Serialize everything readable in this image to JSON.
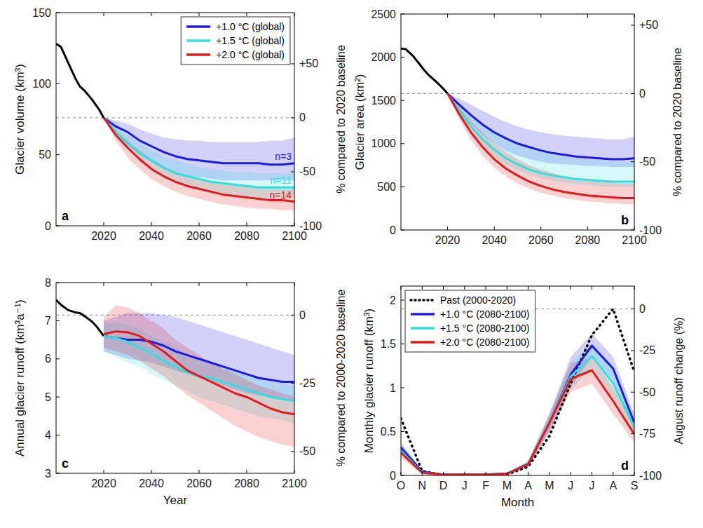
{
  "chart_data": [
    {
      "type": "line",
      "label": "a",
      "ylabel": "Glacier volume (km³)",
      "y2label": "% compared to 2020 baseline",
      "xlim": [
        2000,
        2100
      ],
      "xticks": [
        2020,
        2040,
        2060,
        2080,
        2100
      ],
      "ylim": [
        0,
        150
      ],
      "yticks": [
        0,
        50,
        100,
        150
      ],
      "y2lim": [
        -100,
        97.4
      ],
      "y2ticks": [
        -100,
        -50,
        0,
        {
          "value": 50,
          "label": "+50"
        }
      ],
      "reference_line": {
        "axis": "y2",
        "value": 0,
        "line_style": "dashed"
      },
      "legend": "upper right",
      "x": [
        2020,
        2025,
        2030,
        2035,
        2040,
        2045,
        2050,
        2055,
        2060,
        2065,
        2070,
        2075,
        2080,
        2085,
        2090,
        2095,
        2100
      ],
      "series": [
        {
          "color": "#000000",
          "x": [
            2000,
            2002,
            2005,
            2008,
            2010,
            2012,
            2015,
            2018,
            2020
          ],
          "values": [
            128,
            126,
            115,
            104,
            98,
            95,
            89,
            82,
            76
          ]
        },
        {
          "name": "+1.0 °C (global)",
          "color": "#1a1ae6",
          "label": "n=3",
          "values": [
            76,
            70,
            66,
            60,
            56,
            52,
            49,
            47,
            46,
            45,
            44,
            44,
            44,
            44,
            43,
            43,
            44
          ],
          "upper": [
            76,
            74,
            72,
            68,
            65,
            62,
            61,
            60,
            60,
            59,
            59,
            59,
            59,
            59,
            60,
            60,
            62
          ],
          "lower": [
            76,
            66,
            58,
            51,
            45,
            40,
            37,
            35,
            34,
            33,
            32,
            32,
            32,
            32,
            32,
            32,
            32
          ]
        },
        {
          "name": "+1.5 °C (global)",
          "color": "#33dede",
          "label": "n=11",
          "values": [
            76,
            66,
            58,
            51,
            46,
            41,
            37,
            35,
            33,
            31,
            30,
            29,
            28,
            27,
            27,
            27,
            27
          ],
          "upper": [
            76,
            70,
            64,
            58,
            53,
            49,
            46,
            44,
            42,
            40,
            39,
            38,
            38,
            37,
            37,
            37,
            37
          ],
          "lower": [
            76,
            62,
            53,
            45,
            39,
            34,
            30,
            28,
            26,
            24,
            23,
            22,
            21,
            20,
            20,
            20,
            20
          ]
        },
        {
          "name": "+2.0 °C (global)",
          "color": "#e01b1b",
          "label": "n=14",
          "values": [
            76,
            64,
            55,
            47,
            40,
            35,
            31,
            28,
            26,
            24,
            22,
            21,
            20,
            19,
            18,
            18,
            17
          ],
          "upper": [
            76,
            68,
            60,
            53,
            47,
            42,
            38,
            35,
            33,
            31,
            30,
            29,
            28,
            27,
            27,
            26,
            26
          ],
          "lower": [
            76,
            60,
            48,
            40,
            33,
            28,
            24,
            21,
            19,
            17,
            15,
            14,
            13,
            12,
            12,
            11,
            11
          ]
        }
      ]
    },
    {
      "type": "line",
      "label": "b",
      "ylabel": "Glacier area (km²)",
      "y2label": "% compared to 2020 baseline",
      "xlim": [
        2000,
        2100
      ],
      "xticks": [
        2020,
        2040,
        2060,
        2080,
        2100
      ],
      "ylim": [
        0,
        2500
      ],
      "yticks": [
        0,
        500,
        1000,
        1500,
        2000,
        2500
      ],
      "y2lim": [
        -100,
        58.2
      ],
      "y2ticks": [
        -100,
        -50,
        0,
        {
          "value": 50,
          "label": "+50"
        }
      ],
      "reference_line": {
        "axis": "y2",
        "value": 0,
        "line_style": "dashed"
      },
      "x": [
        2020,
        2025,
        2030,
        2035,
        2040,
        2045,
        2050,
        2055,
        2060,
        2065,
        2070,
        2075,
        2080,
        2085,
        2090,
        2095,
        2100
      ],
      "series": [
        {
          "color": "#000000",
          "x": [
            2000,
            2002,
            2005,
            2008,
            2010,
            2012,
            2015,
            2018,
            2020
          ],
          "values": [
            2100,
            2095,
            2020,
            1920,
            1850,
            1790,
            1720,
            1640,
            1580
          ]
        },
        {
          "color": "#1a1ae6",
          "values": [
            1580,
            1450,
            1330,
            1220,
            1130,
            1060,
            1000,
            960,
            920,
            890,
            870,
            850,
            840,
            830,
            820,
            820,
            830
          ],
          "upper": [
            1580,
            1520,
            1450,
            1380,
            1310,
            1250,
            1200,
            1160,
            1130,
            1110,
            1090,
            1080,
            1070,
            1060,
            1050,
            1050,
            1080
          ],
          "lower": [
            1580,
            1400,
            1230,
            1100,
            1000,
            920,
            860,
            820,
            790,
            770,
            760,
            750,
            740,
            740,
            730,
            730,
            730
          ]
        },
        {
          "color": "#33dede",
          "values": [
            1580,
            1380,
            1200,
            1050,
            930,
            830,
            760,
            700,
            660,
            630,
            610,
            590,
            580,
            570,
            560,
            560,
            560
          ],
          "upper": [
            1580,
            1460,
            1340,
            1230,
            1140,
            1060,
            1000,
            950,
            910,
            880,
            850,
            830,
            820,
            810,
            800,
            790,
            790
          ],
          "lower": [
            1580,
            1330,
            1130,
            970,
            850,
            760,
            690,
            640,
            600,
            570,
            550,
            530,
            520,
            510,
            500,
            500,
            500
          ]
        },
        {
          "color": "#e01b1b",
          "values": [
            1580,
            1340,
            1130,
            960,
            820,
            710,
            630,
            560,
            510,
            470,
            440,
            420,
            400,
            390,
            380,
            370,
            370
          ],
          "upper": [
            1580,
            1420,
            1260,
            1120,
            1000,
            900,
            820,
            750,
            700,
            660,
            620,
            600,
            580,
            560,
            550,
            540,
            540
          ],
          "lower": [
            1580,
            1280,
            1040,
            860,
            720,
            620,
            540,
            480,
            430,
            400,
            370,
            350,
            330,
            320,
            310,
            300,
            300
          ]
        }
      ]
    },
    {
      "type": "line",
      "label": "c",
      "xlabel": "Year",
      "ylabel": "Annual glacier runoff (km³a⁻¹)",
      "y2label": "% compared to 2000-2020 baseline",
      "xlim": [
        2000,
        2100
      ],
      "xticks": [
        2020,
        2040,
        2060,
        2080,
        2100
      ],
      "ylim": [
        3,
        8
      ],
      "yticks": [
        3,
        4,
        5,
        6,
        7,
        8
      ],
      "y2lim": [
        -58.0,
        11.9
      ],
      "y2ticks": [
        -50,
        -25,
        0
      ],
      "reference_line": {
        "axis": "y2",
        "value": 0,
        "line_style": "dashed"
      },
      "x": [
        2020,
        2025,
        2030,
        2035,
        2040,
        2045,
        2050,
        2055,
        2060,
        2065,
        2070,
        2075,
        2080,
        2085,
        2090,
        2095,
        2100
      ],
      "series": [
        {
          "color": "#000000",
          "x": [
            2000,
            2002,
            2005,
            2008,
            2010,
            2012,
            2015,
            2017,
            2020
          ],
          "values": [
            7.55,
            7.42,
            7.28,
            7.22,
            7.2,
            7.12,
            6.98,
            6.85,
            6.6
          ]
        },
        {
          "color": "#1a1ae6",
          "values": [
            6.6,
            6.55,
            6.5,
            6.5,
            6.45,
            6.35,
            6.2,
            6.1,
            6.0,
            5.9,
            5.8,
            5.7,
            5.6,
            5.5,
            5.45,
            5.4,
            5.4
          ],
          "upper": [
            7.0,
            7.1,
            7.2,
            7.2,
            7.2,
            7.15,
            7.1,
            7.0,
            6.9,
            6.8,
            6.7,
            6.6,
            6.5,
            6.4,
            6.3,
            6.2,
            6.1
          ],
          "lower": [
            6.2,
            6.1,
            6.0,
            5.95,
            5.9,
            5.8,
            5.7,
            5.6,
            5.5,
            5.4,
            5.3,
            5.2,
            5.1,
            5.05,
            5.0,
            4.95,
            4.9
          ]
        },
        {
          "color": "#33dede",
          "values": [
            6.6,
            6.55,
            6.45,
            6.3,
            6.15,
            5.95,
            5.8,
            5.65,
            5.55,
            5.5,
            5.4,
            5.3,
            5.2,
            5.1,
            5.0,
            4.95,
            4.9
          ],
          "upper": [
            6.9,
            6.95,
            6.9,
            6.8,
            6.6,
            6.45,
            6.3,
            6.15,
            6.0,
            5.9,
            5.8,
            5.7,
            5.6,
            5.5,
            5.4,
            5.35,
            5.3
          ],
          "lower": [
            6.2,
            6.05,
            5.9,
            5.8,
            5.6,
            5.45,
            5.3,
            5.15,
            5.0,
            4.9,
            4.8,
            4.7,
            4.6,
            4.5,
            4.45,
            4.4,
            4.3
          ]
        },
        {
          "color": "#e01b1b",
          "values": [
            6.65,
            6.72,
            6.7,
            6.6,
            6.4,
            6.2,
            5.95,
            5.7,
            5.55,
            5.4,
            5.25,
            5.1,
            5.0,
            4.85,
            4.7,
            4.6,
            4.55
          ],
          "upper": [
            7.1,
            7.4,
            7.35,
            7.2,
            7.0,
            6.8,
            6.5,
            6.3,
            6.1,
            5.9,
            5.75,
            5.6,
            5.45,
            5.3,
            5.2,
            5.1,
            5.0
          ],
          "lower": [
            6.3,
            6.2,
            6.1,
            5.95,
            5.75,
            5.55,
            5.3,
            5.05,
            4.85,
            4.65,
            4.45,
            4.25,
            4.1,
            3.95,
            3.85,
            3.75,
            3.7
          ]
        }
      ]
    },
    {
      "type": "line",
      "label": "d",
      "xlabel": "Month",
      "ylabel": "Monthly glacier runoff (km³)",
      "y2label": "August runoff  change (%)",
      "categories": [
        "O",
        "N",
        "D",
        "J",
        "F",
        "M",
        "A",
        "M",
        "J",
        "J",
        "A",
        "S"
      ],
      "ylim": [
        0,
        2.16
      ],
      "yticks": [
        0,
        0.5,
        1,
        1.5,
        2
      ],
      "y2lim": [
        -100,
        13.7
      ],
      "y2ticks": [
        -100,
        -75,
        -50,
        -25,
        0
      ],
      "reference_line": {
        "axis": "y2",
        "value": 0,
        "line_style": "dashed"
      },
      "legend": "upper left",
      "series": [
        {
          "name": "Past (2000-2020)",
          "color": "#000000",
          "line_style": "dotted",
          "values": [
            0.65,
            0.05,
            0,
            0,
            0,
            0.01,
            0.1,
            0.45,
            1.05,
            1.6,
            1.9,
            1.18
          ]
        },
        {
          "name": "+1.0 °C (2080-2100)",
          "color": "#1a1ae6",
          "values": [
            0.32,
            0.04,
            0.01,
            0.01,
            0.01,
            0.02,
            0.13,
            0.6,
            1.15,
            1.48,
            1.22,
            0.6
          ],
          "upper": [
            0.38,
            0.06,
            0.02,
            0.02,
            0.02,
            0.03,
            0.16,
            0.7,
            1.35,
            1.62,
            1.35,
            0.7
          ],
          "lower": [
            0.25,
            0.02,
            0,
            0,
            0,
            0.01,
            0.1,
            0.5,
            1.0,
            1.35,
            1.08,
            0.5
          ]
        },
        {
          "name": "+1.5 °C (2080-2100)",
          "color": "#33dede",
          "values": [
            0.28,
            0.03,
            0.01,
            0.01,
            0.01,
            0.02,
            0.13,
            0.6,
            1.13,
            1.36,
            1.05,
            0.55
          ],
          "upper": [
            0.34,
            0.05,
            0.02,
            0.02,
            0.02,
            0.03,
            0.16,
            0.7,
            1.3,
            1.5,
            1.2,
            0.65
          ],
          "lower": [
            0.22,
            0.02,
            0,
            0,
            0,
            0.01,
            0.1,
            0.5,
            0.98,
            1.22,
            0.9,
            0.45
          ]
        },
        {
          "name": "+2.0 °C (2080-2100)",
          "color": "#e01b1b",
          "values": [
            0.26,
            0.03,
            0.01,
            0.01,
            0.01,
            0.02,
            0.13,
            0.6,
            1.1,
            1.2,
            0.85,
            0.47
          ],
          "upper": [
            0.32,
            0.05,
            0.02,
            0.02,
            0.02,
            0.03,
            0.16,
            0.7,
            1.28,
            1.35,
            1.0,
            0.58
          ],
          "lower": [
            0.2,
            0.02,
            0,
            0,
            0,
            0.01,
            0.1,
            0.5,
            0.95,
            1.05,
            0.7,
            0.38
          ]
        }
      ]
    }
  ]
}
